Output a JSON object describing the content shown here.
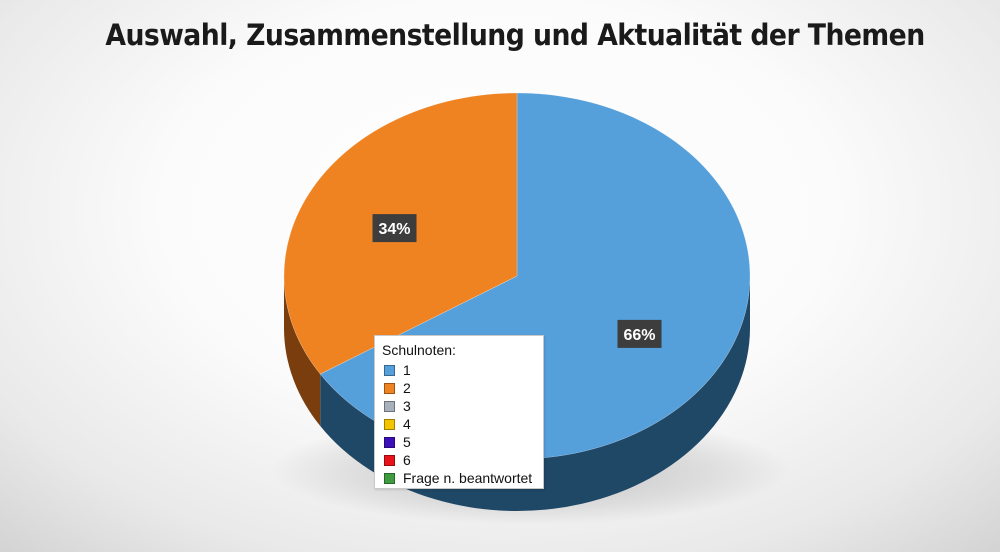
{
  "chart_data": {
    "type": "pie",
    "title": "Auswahl, Zusammenstellung und Aktualität der Themen",
    "legend_title": "Schulnoten:",
    "legend_position": "bottom-left overlay",
    "slices": [
      {
        "label": "1",
        "value": 66,
        "color": "#559fdb",
        "side_color": "#1f4766",
        "data_label": "66%"
      },
      {
        "label": "2",
        "value": 34,
        "color": "#f08321",
        "side_color": "#7a3d0e",
        "data_label": "34%"
      },
      {
        "label": "3",
        "value": 0,
        "color": "#a7b1bc"
      },
      {
        "label": "4",
        "value": 0,
        "color": "#f5c400"
      },
      {
        "label": "5",
        "value": 0,
        "color": "#3b10b8"
      },
      {
        "label": "6",
        "value": 0,
        "color": "#e8121a"
      },
      {
        "label": "Frage n. beantwortet",
        "value": 0,
        "color": "#3f9b3f"
      }
    ]
  }
}
